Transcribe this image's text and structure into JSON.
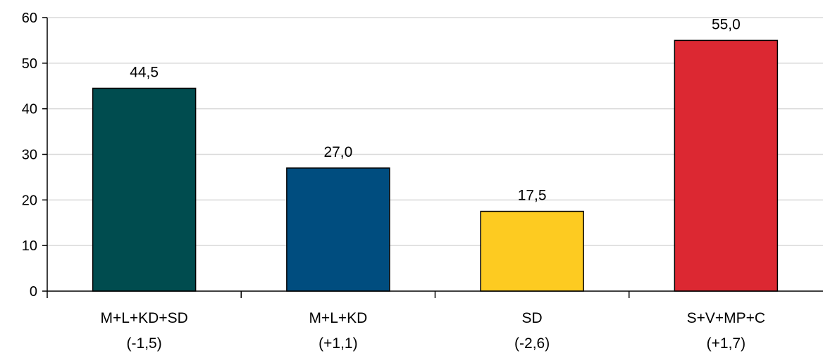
{
  "chart_data": {
    "type": "bar",
    "title": "",
    "xlabel": "",
    "ylabel": "",
    "ylim": [
      0,
      60
    ],
    "yticks": [
      0,
      10,
      20,
      30,
      40,
      50,
      60
    ],
    "grid": true,
    "categories": [
      {
        "line1": "M+L+KD+SD",
        "line2": "(-1,5)",
        "value": 44.5,
        "label": "44,5",
        "color": "#004c4f"
      },
      {
        "line1": "M+L+KD",
        "line2": "(+1,1)",
        "value": 27.0,
        "label": "27,0",
        "color": "#004d7f"
      },
      {
        "line1": "SD",
        "line2": "(-2,6)",
        "value": 17.5,
        "label": "17,5",
        "color": "#fdcb21"
      },
      {
        "line1": "S+V+MP+C",
        "line2": "(+1,7)",
        "value": 55.0,
        "label": "55,0",
        "color": "#dc2832"
      }
    ]
  }
}
